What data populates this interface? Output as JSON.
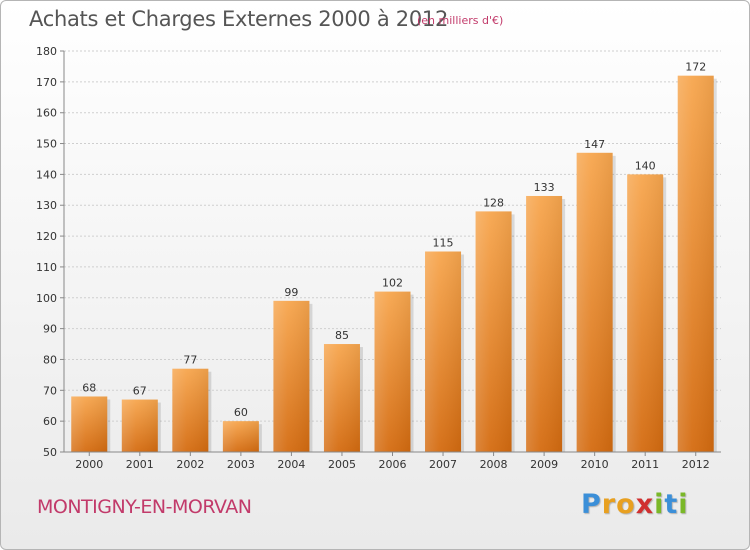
{
  "header": {
    "title": "Achats et Charges Externes 2000 à 2012",
    "subtitle": "(en milliers d'€)"
  },
  "footer": {
    "commune": "MONTIGNY-EN-MORVAN",
    "logo": {
      "letters": [
        "P",
        "r",
        "o",
        "x",
        "i",
        "t",
        "i"
      ],
      "colors": [
        "#3b8fd8",
        "#e8a020",
        "#e8a020",
        "#d03030",
        "#7ab828",
        "#3b8fd8",
        "#7ab828"
      ]
    }
  },
  "colors": {
    "bar_top": "#f7a64e",
    "bar_bottom": "#d46b10",
    "grid": "#cfcfcf",
    "axis": "#888888"
  },
  "chart_data": {
    "type": "bar",
    "categories": [
      "2000",
      "2001",
      "2002",
      "2003",
      "2004",
      "2005",
      "2006",
      "2007",
      "2008",
      "2009",
      "2010",
      "2011",
      "2012"
    ],
    "values": [
      68,
      67,
      77,
      60,
      99,
      85,
      102,
      115,
      128,
      133,
      147,
      140,
      172
    ],
    "data_labels": [
      "68",
      "67",
      "77",
      "60",
      "99",
      "85",
      "102",
      "115",
      "128",
      "133",
      "147",
      "140",
      "172"
    ],
    "ylim": [
      50,
      180
    ],
    "yticks": [
      50,
      60,
      70,
      80,
      90,
      100,
      110,
      120,
      130,
      140,
      150,
      160,
      170,
      180
    ],
    "grid": true,
    "title": "Achats et Charges Externes 2000 à 2012",
    "xlabel": "",
    "ylabel": ""
  }
}
